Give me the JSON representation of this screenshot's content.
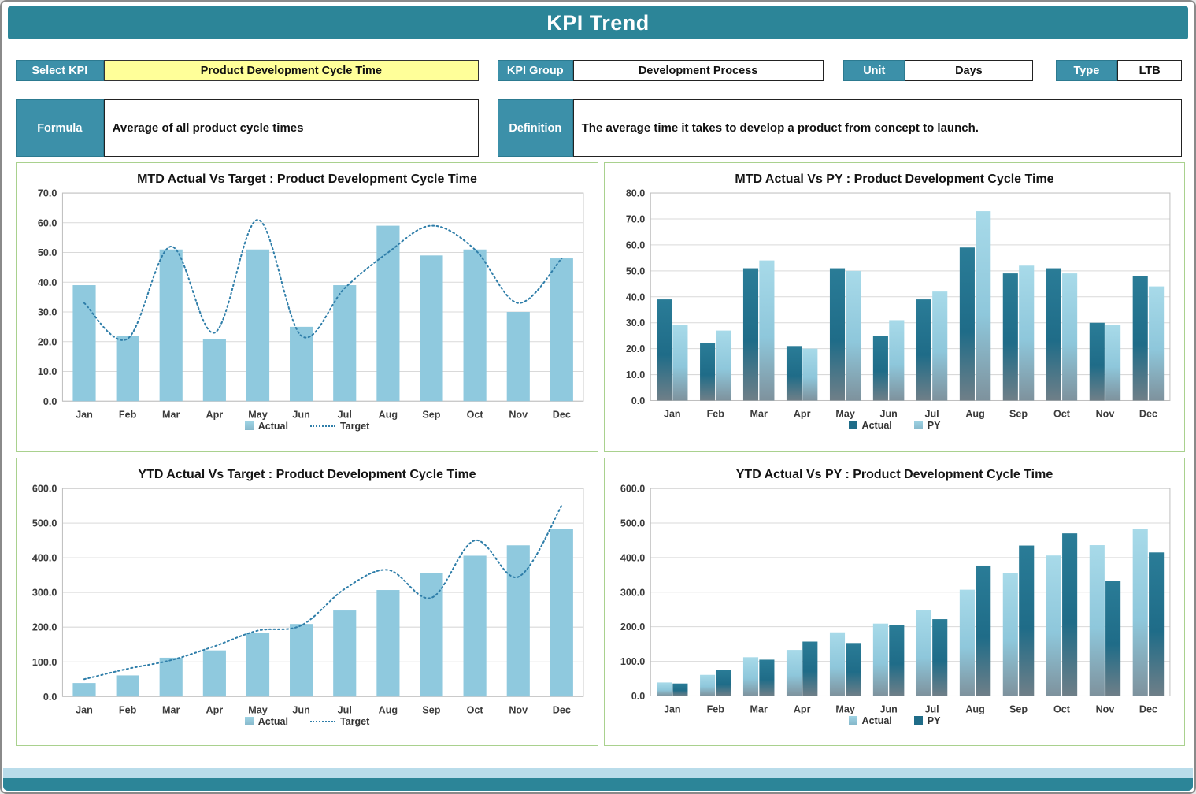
{
  "title": "KPI Trend",
  "controls": {
    "select_kpi": {
      "label": "Select KPI",
      "value": "Product Development Cycle Time"
    },
    "kpi_group": {
      "label": "KPI Group",
      "value": "Development Process"
    },
    "unit": {
      "label": "Unit",
      "value": "Days"
    },
    "type": {
      "label": "Type",
      "value": "LTB"
    },
    "formula": {
      "label": "Formula",
      "value": "Average of all product cycle times"
    },
    "definition": {
      "label": "Definition",
      "value": "The average time it takes to develop a product from concept to launch."
    }
  },
  "colors": {
    "titlebar_teal": "#2C8598",
    "label_teal": "#3C90A9",
    "bar_light": "#8FC9DE",
    "bar_dark": "#1F6C88",
    "target_line": "#2F7EA9",
    "highlight_yellow": "#FFFF99",
    "panel_border": "#A9D18E",
    "gridline": "#D9D9D9"
  },
  "chart_data": [
    {
      "type": "bar+line",
      "title": "MTD Actual Vs Target : Product Development Cycle Time",
      "categories": [
        "Jan",
        "Feb",
        "Mar",
        "Apr",
        "May",
        "Jun",
        "Jul",
        "Aug",
        "Sep",
        "Oct",
        "Nov",
        "Dec"
      ],
      "series": [
        {
          "name": "Actual",
          "type": "bar",
          "style": "light",
          "values": [
            39,
            22,
            51,
            21,
            51,
            25,
            39,
            59,
            49,
            51,
            30,
            48
          ]
        },
        {
          "name": "Target",
          "type": "line",
          "style": "dotted",
          "values": [
            33,
            21,
            52,
            23,
            61,
            22,
            38,
            50,
            59,
            51,
            33,
            48
          ]
        }
      ],
      "ylim": [
        0,
        70
      ],
      "ystep": 10,
      "grid": true,
      "legend_position": "bottom"
    },
    {
      "type": "bar",
      "title": "MTD Actual Vs PY : Product Development Cycle Time",
      "categories": [
        "Jan",
        "Feb",
        "Mar",
        "Apr",
        "May",
        "Jun",
        "Jul",
        "Aug",
        "Sep",
        "Oct",
        "Nov",
        "Dec"
      ],
      "series": [
        {
          "name": "Actual",
          "type": "bar",
          "style": "dark",
          "values": [
            39,
            22,
            51,
            21,
            51,
            25,
            39,
            59,
            49,
            51,
            30,
            48
          ]
        },
        {
          "name": "PY",
          "type": "bar",
          "style": "light",
          "values": [
            29,
            27,
            54,
            20,
            50,
            31,
            42,
            73,
            52,
            49,
            29,
            44
          ]
        }
      ],
      "ylim": [
        0,
        80
      ],
      "ystep": 10,
      "grid": true,
      "legend_position": "bottom"
    },
    {
      "type": "bar+line",
      "title": "YTD Actual Vs Target : Product Development Cycle Time",
      "categories": [
        "Jan",
        "Feb",
        "Mar",
        "Apr",
        "May",
        "Jun",
        "Jul",
        "Aug",
        "Sep",
        "Oct",
        "Nov",
        "Dec"
      ],
      "series": [
        {
          "name": "Actual",
          "type": "bar",
          "style": "light",
          "values": [
            39,
            61,
            112,
            133,
            184,
            209,
            248,
            307,
            355,
            406,
            436,
            484
          ]
        },
        {
          "name": "Target",
          "type": "line",
          "style": "dotted",
          "values": [
            50,
            80,
            105,
            145,
            190,
            205,
            310,
            365,
            285,
            450,
            345,
            550
          ]
        }
      ],
      "ylim": [
        0,
        600
      ],
      "ystep": 100,
      "grid": true,
      "legend_position": "bottom"
    },
    {
      "type": "bar",
      "title": "YTD Actual Vs PY : Product Development Cycle Time",
      "categories": [
        "Jan",
        "Feb",
        "Mar",
        "Apr",
        "May",
        "Jun",
        "Jul",
        "Aug",
        "Sep",
        "Oct",
        "Nov",
        "Dec"
      ],
      "series": [
        {
          "name": "Actual",
          "type": "bar",
          "style": "light",
          "values": [
            39,
            61,
            112,
            133,
            184,
            209,
            248,
            307,
            355,
            406,
            436,
            484
          ]
        },
        {
          "name": "PY",
          "type": "bar",
          "style": "dark",
          "values": [
            36,
            75,
            105,
            157,
            153,
            205,
            222,
            377,
            435,
            470,
            332,
            415
          ]
        }
      ],
      "ylim": [
        0,
        600
      ],
      "ystep": 100,
      "grid": true,
      "legend_position": "bottom"
    }
  ]
}
